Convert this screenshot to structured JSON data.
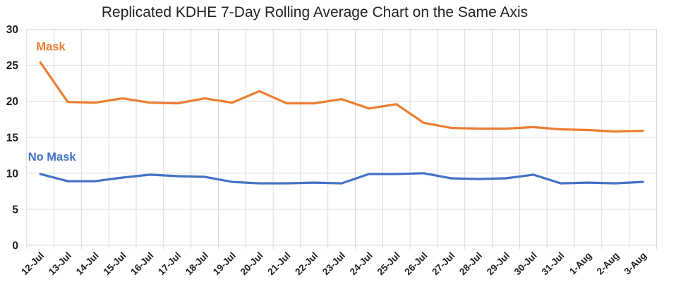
{
  "chart_data": {
    "type": "line",
    "title": "Replicated KDHE 7-Day Rolling Average Chart on the Same Axis",
    "xlabel": "",
    "ylabel": "",
    "categories": [
      "12-Jul",
      "13-Jul",
      "14-Jul",
      "15-Jul",
      "16-Jul",
      "17-Jul",
      "18-Jul",
      "19-Jul",
      "20-Jul",
      "21-Jul",
      "22-Jul",
      "23-Jul",
      "24-Jul",
      "25-Jul",
      "26-Jul",
      "27-Jul",
      "28-Jul",
      "29-Jul",
      "30-Jul",
      "31-Jul",
      "1-Aug",
      "2-Aug",
      "3-Aug"
    ],
    "ylim": [
      0,
      30
    ],
    "yticks": [
      0,
      5,
      10,
      15,
      20,
      25,
      30
    ],
    "grid": true,
    "legend_position": "inline-series-labels",
    "series": [
      {
        "name": "Mask",
        "color": "#ED7D31",
        "values": [
          25.4,
          19.9,
          19.8,
          20.4,
          19.8,
          19.7,
          20.4,
          19.8,
          21.4,
          19.7,
          19.7,
          20.3,
          19.0,
          19.6,
          17.0,
          16.3,
          16.2,
          16.2,
          16.4,
          16.1,
          16.0,
          15.8,
          15.9
        ],
        "label_x_index": -0.15,
        "label_value": 27.6
      },
      {
        "name": "No Mask",
        "color": "#4472C4",
        "values": [
          9.9,
          8.9,
          8.9,
          9.4,
          9.8,
          9.6,
          9.5,
          8.8,
          8.6,
          8.6,
          8.7,
          8.6,
          9.9,
          9.9,
          10.0,
          9.3,
          9.2,
          9.3,
          9.8,
          8.6,
          8.7,
          8.6,
          8.8
        ],
        "label_x_index": -0.45,
        "label_value": 12.3
      }
    ],
    "colors": {
      "gridline": "#D9D9D9",
      "axis_text": "#1F1F1F",
      "title_text": "#222222",
      "background": "#FFFFFF"
    }
  }
}
